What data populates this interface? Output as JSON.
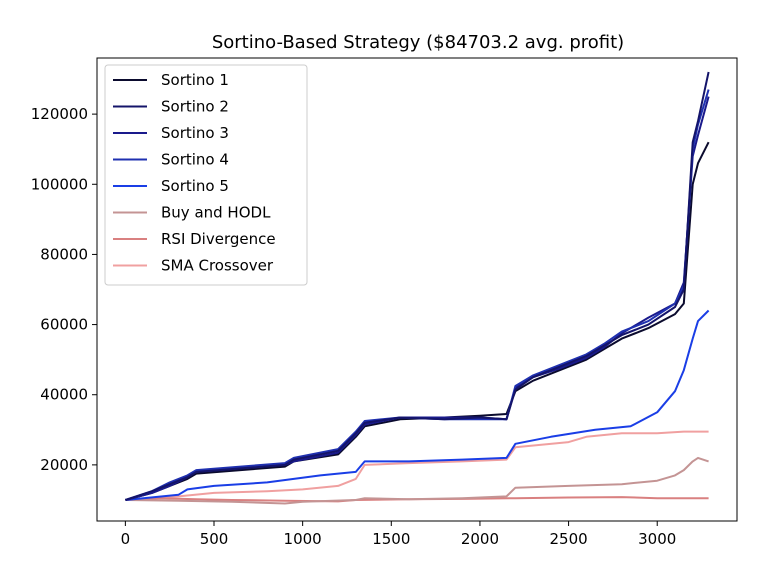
{
  "chart_data": {
    "type": "line",
    "title": "Sortino-Based Strategy ($84703.2 avg. profit)",
    "xlabel": "",
    "ylabel": "",
    "xlim": [
      -160,
      3450
    ],
    "ylim": [
      4000,
      136000
    ],
    "xticks": [
      0,
      500,
      1000,
      1500,
      2000,
      2500,
      3000
    ],
    "yticks": [
      20000,
      40000,
      60000,
      80000,
      100000,
      120000
    ],
    "grid": false,
    "legend": "top-left",
    "series": [
      {
        "name": "Sortino 1",
        "color": "#0b0b2e",
        "x": [
          0,
          150,
          250,
          350,
          400,
          650,
          900,
          950,
          1200,
          1300,
          1350,
          1550,
          1800,
          2000,
          2150,
          2200,
          2300,
          2450,
          2600,
          2700,
          2800,
          2950,
          3100,
          3150,
          3200,
          3230,
          3290
        ],
        "y": [
          10000,
          12000,
          14000,
          16000,
          17500,
          18500,
          19500,
          21000,
          23000,
          28000,
          31000,
          33000,
          33500,
          34000,
          34500,
          41000,
          44000,
          47000,
          50000,
          53000,
          56000,
          59000,
          63000,
          66000,
          100000,
          106000,
          112000
        ]
      },
      {
        "name": "Sortino 2",
        "color": "#14146a",
        "x": [
          0,
          150,
          250,
          350,
          400,
          650,
          900,
          950,
          1200,
          1300,
          1350,
          1550,
          1800,
          2000,
          2150,
          2200,
          2300,
          2450,
          2600,
          2700,
          2800,
          2950,
          3100,
          3150,
          3200,
          3230,
          3290
        ],
        "y": [
          10000,
          12500,
          14500,
          16500,
          18000,
          19000,
          20000,
          21500,
          24000,
          29000,
          32000,
          33500,
          33000,
          33500,
          33000,
          41500,
          45000,
          48000,
          51000,
          54000,
          57000,
          60000,
          65000,
          70000,
          112000,
          118000,
          132000
        ]
      },
      {
        "name": "Sortino 3",
        "color": "#1a1a8c",
        "x": [
          0,
          150,
          250,
          350,
          400,
          650,
          900,
          950,
          1200,
          1300,
          1350,
          1550,
          1800,
          2000,
          2150,
          2200,
          2300,
          2450,
          2600,
          2700,
          2800,
          2950,
          3100,
          3150,
          3200,
          3230,
          3290
        ],
        "y": [
          10000,
          12000,
          14000,
          16500,
          18000,
          19000,
          20000,
          21000,
          23500,
          28500,
          31500,
          33500,
          33500,
          33500,
          33000,
          42000,
          45000,
          47500,
          50500,
          53500,
          57500,
          62000,
          66000,
          72000,
          108000,
          114000,
          125000
        ]
      },
      {
        "name": "Sortino 4",
        "color": "#1f30b0",
        "x": [
          0,
          150,
          250,
          350,
          400,
          650,
          900,
          950,
          1200,
          1300,
          1350,
          1550,
          1800,
          2000,
          2150,
          2200,
          2300,
          2450,
          2600,
          2700,
          2800,
          2950,
          3100,
          3150,
          3200,
          3230,
          3290
        ],
        "y": [
          10000,
          12500,
          15000,
          17000,
          18500,
          19500,
          20500,
          22000,
          24500,
          29500,
          32500,
          33500,
          33000,
          33000,
          33000,
          42500,
          45500,
          48500,
          51500,
          54500,
          58000,
          61000,
          66000,
          71000,
          110000,
          117000,
          127000
        ]
      },
      {
        "name": "Sortino 5",
        "color": "#1a3ee6",
        "x": [
          0,
          300,
          350,
          500,
          800,
          1100,
          1200,
          1300,
          1350,
          1600,
          1900,
          2150,
          2200,
          2400,
          2650,
          2850,
          3000,
          3100,
          3150,
          3200,
          3230,
          3290
        ],
        "y": [
          10000,
          11500,
          13000,
          14000,
          15000,
          17000,
          17500,
          18000,
          21000,
          21000,
          21500,
          22000,
          26000,
          28000,
          30000,
          31000,
          35000,
          41000,
          47000,
          56000,
          61000,
          64000
        ]
      },
      {
        "name": "Buy and HODL",
        "color": "#c49494",
        "x": [
          0,
          300,
          600,
          900,
          1000,
          1300,
          1350,
          1600,
          1900,
          2150,
          2200,
          2500,
          2800,
          3000,
          3100,
          3150,
          3200,
          3230,
          3290
        ],
        "y": [
          10000,
          9800,
          9500,
          9000,
          9500,
          10000,
          10500,
          10200,
          10500,
          11000,
          13500,
          14000,
          14500,
          15500,
          17000,
          18500,
          21000,
          22000,
          21000
        ]
      },
      {
        "name": "RSI Divergence",
        "color": "#d98080",
        "x": [
          0,
          200,
          400,
          600,
          900,
          1200,
          1300,
          1600,
          1900,
          2200,
          2500,
          2800,
          3000,
          3290
        ],
        "y": [
          10000,
          10500,
          10200,
          10000,
          9800,
          9600,
          10000,
          10200,
          10300,
          10500,
          10700,
          10800,
          10500,
          10500
        ]
      },
      {
        "name": "SMA Crossover",
        "color": "#f0a0a0",
        "x": [
          0,
          300,
          500,
          800,
          1000,
          1200,
          1300,
          1350,
          1600,
          1900,
          2150,
          2200,
          2500,
          2600,
          2800,
          3000,
          3150,
          3290
        ],
        "y": [
          10000,
          11000,
          12000,
          12500,
          13000,
          14000,
          16000,
          20000,
          20500,
          21000,
          21500,
          25000,
          26500,
          28000,
          29000,
          29000,
          29500,
          29500
        ]
      }
    ]
  }
}
